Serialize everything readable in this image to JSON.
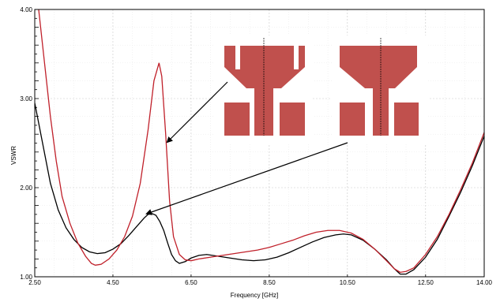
{
  "chart_data": {
    "type": "line",
    "title": "",
    "xlabel": "Frequency [GHz]",
    "ylabel": "VSWR",
    "xlim": [
      2.5,
      14.0
    ],
    "ylim": [
      1.0,
      4.0
    ],
    "x_ticks": [
      "2.50",
      "4.50",
      "6.50",
      "8.50",
      "10.50",
      "12.50",
      "14.00"
    ],
    "y_ticks": [
      "1.00",
      "2.00",
      "3.00",
      "4.00"
    ],
    "grid": true,
    "series": [
      {
        "color": "#000000",
        "points": [
          [
            2.5,
            2.95
          ],
          [
            2.7,
            2.5
          ],
          [
            2.9,
            2.05
          ],
          [
            3.1,
            1.75
          ],
          [
            3.3,
            1.55
          ],
          [
            3.5,
            1.42
          ],
          [
            3.7,
            1.33
          ],
          [
            3.9,
            1.28
          ],
          [
            4.1,
            1.26
          ],
          [
            4.3,
            1.27
          ],
          [
            4.5,
            1.31
          ],
          [
            4.7,
            1.37
          ],
          [
            4.9,
            1.46
          ],
          [
            5.1,
            1.56
          ],
          [
            5.3,
            1.66
          ],
          [
            5.4,
            1.7
          ],
          [
            5.5,
            1.71
          ],
          [
            5.6,
            1.69
          ],
          [
            5.7,
            1.62
          ],
          [
            5.8,
            1.52
          ],
          [
            5.9,
            1.38
          ],
          [
            6.0,
            1.25
          ],
          [
            6.1,
            1.18
          ],
          [
            6.2,
            1.15
          ],
          [
            6.35,
            1.17
          ],
          [
            6.5,
            1.21
          ],
          [
            6.7,
            1.24
          ],
          [
            6.9,
            1.25
          ],
          [
            7.2,
            1.23
          ],
          [
            7.5,
            1.21
          ],
          [
            7.8,
            1.19
          ],
          [
            8.1,
            1.18
          ],
          [
            8.4,
            1.19
          ],
          [
            8.7,
            1.22
          ],
          [
            9.0,
            1.27
          ],
          [
            9.3,
            1.33
          ],
          [
            9.6,
            1.39
          ],
          [
            9.9,
            1.44
          ],
          [
            10.2,
            1.47
          ],
          [
            10.4,
            1.48
          ],
          [
            10.6,
            1.47
          ],
          [
            10.9,
            1.41
          ],
          [
            11.2,
            1.31
          ],
          [
            11.5,
            1.19
          ],
          [
            11.7,
            1.09
          ],
          [
            11.85,
            1.03
          ],
          [
            12.0,
            1.03
          ],
          [
            12.2,
            1.08
          ],
          [
            12.5,
            1.22
          ],
          [
            12.8,
            1.42
          ],
          [
            13.1,
            1.68
          ],
          [
            13.4,
            1.95
          ],
          [
            13.7,
            2.25
          ],
          [
            14.0,
            2.58
          ]
        ]
      },
      {
        "color": "#c0202a",
        "points": [
          [
            2.5,
            4.6
          ],
          [
            2.6,
            4.0
          ],
          [
            2.75,
            3.4
          ],
          [
            2.9,
            2.8
          ],
          [
            3.05,
            2.3
          ],
          [
            3.2,
            1.9
          ],
          [
            3.4,
            1.6
          ],
          [
            3.6,
            1.38
          ],
          [
            3.8,
            1.23
          ],
          [
            3.95,
            1.15
          ],
          [
            4.05,
            1.13
          ],
          [
            4.2,
            1.14
          ],
          [
            4.4,
            1.2
          ],
          [
            4.6,
            1.3
          ],
          [
            4.8,
            1.45
          ],
          [
            5.0,
            1.68
          ],
          [
            5.2,
            2.05
          ],
          [
            5.4,
            2.65
          ],
          [
            5.55,
            3.2
          ],
          [
            5.68,
            3.4
          ],
          [
            5.75,
            3.25
          ],
          [
            5.85,
            2.6
          ],
          [
            5.95,
            1.85
          ],
          [
            6.05,
            1.45
          ],
          [
            6.2,
            1.25
          ],
          [
            6.35,
            1.19
          ],
          [
            6.5,
            1.18
          ],
          [
            6.7,
            1.2
          ],
          [
            7.0,
            1.22
          ],
          [
            7.3,
            1.24
          ],
          [
            7.6,
            1.26
          ],
          [
            7.9,
            1.28
          ],
          [
            8.2,
            1.3
          ],
          [
            8.5,
            1.33
          ],
          [
            8.8,
            1.37
          ],
          [
            9.1,
            1.41
          ],
          [
            9.4,
            1.46
          ],
          [
            9.7,
            1.5
          ],
          [
            10.0,
            1.52
          ],
          [
            10.3,
            1.52
          ],
          [
            10.6,
            1.49
          ],
          [
            10.9,
            1.42
          ],
          [
            11.2,
            1.31
          ],
          [
            11.5,
            1.18
          ],
          [
            11.7,
            1.09
          ],
          [
            11.85,
            1.05
          ],
          [
            12.0,
            1.06
          ],
          [
            12.2,
            1.1
          ],
          [
            12.5,
            1.25
          ],
          [
            12.8,
            1.45
          ],
          [
            13.1,
            1.7
          ],
          [
            13.4,
            1.98
          ],
          [
            13.7,
            2.28
          ],
          [
            14.0,
            2.62
          ]
        ]
      }
    ]
  }
}
